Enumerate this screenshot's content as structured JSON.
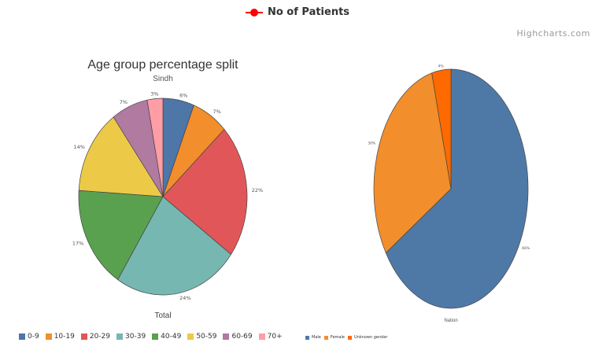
{
  "legend_top": {
    "label": "No of Patients",
    "color": "#ff0000"
  },
  "credits": "Highcharts.com",
  "chart_data": [
    {
      "type": "pie",
      "title": "Age group percentage split",
      "subtitle": "Sindh",
      "xlabel": "Total",
      "categories": [
        "0-9",
        "10-19",
        "20-29",
        "30-39",
        "40-49",
        "50-59",
        "60-69",
        "70+"
      ],
      "values": [
        6,
        7,
        22,
        24,
        17,
        14,
        7,
        3
      ],
      "labels": [
        "6%",
        "7%",
        "22%",
        "24%",
        "17%",
        "14%",
        "7%",
        "3%"
      ],
      "colors": [
        "#4e76a7",
        "#f28e2b",
        "#e15759",
        "#76b7b2",
        "#59a14f",
        "#edc948",
        "#b07aa1",
        "#ff9da7"
      ],
      "legend": "bottom-left"
    },
    {
      "type": "pie",
      "xlabel": "Nation",
      "categories": [
        "Male",
        "Female",
        "Unknown gender"
      ],
      "values": [
        66,
        30,
        4
      ],
      "labels": [
        "66%",
        "30%",
        "4%"
      ],
      "colors": [
        "#4e79a7",
        "#f28e2b",
        "#ff6a00"
      ],
      "legend": "bottom-left"
    }
  ]
}
